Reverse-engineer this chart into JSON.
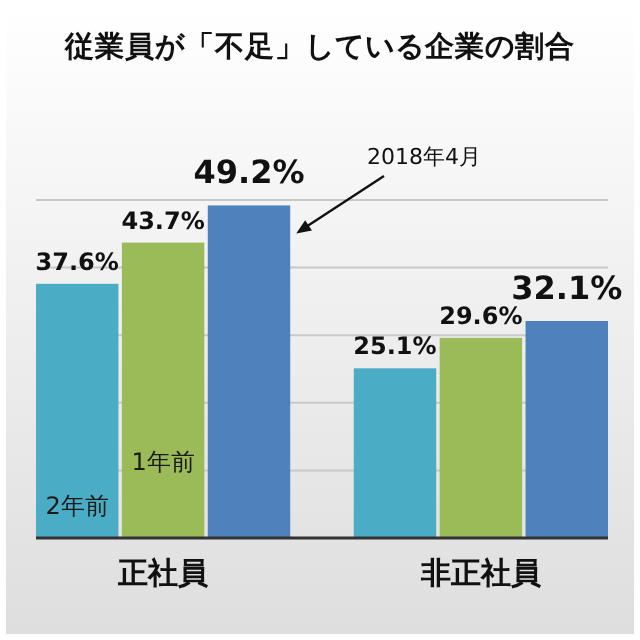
{
  "chart_data": {
    "type": "bar",
    "title": "従業員が「不足」している企業の割合",
    "categories": [
      "正社員",
      "非正社員"
    ],
    "series": [
      {
        "name": "2年前",
        "color": "#4bacc6",
        "values": [
          37.6,
          25.1
        ],
        "value_labels": [
          "37.6%",
          "25.1%"
        ]
      },
      {
        "name": "1年前",
        "color": "#9bbb59",
        "values": [
          43.7,
          29.6
        ],
        "value_labels": [
          "43.7%",
          "29.6%"
        ]
      },
      {
        "name": "2018年4月",
        "color": "#4f81bd",
        "values": [
          49.2,
          32.1
        ],
        "value_labels": [
          "49.2%",
          "32.1%"
        ]
      }
    ],
    "ylim": [
      0,
      50
    ],
    "yticks": [
      {
        "value": 0,
        "label": null
      },
      {
        "value": 10,
        "label": null
      },
      {
        "value": 20,
        "label": null
      },
      {
        "value": 30,
        "label": null
      },
      {
        "value": 40,
        "label": null
      },
      {
        "value": 50,
        "label": null
      }
    ],
    "grid": "y",
    "tick_labels": "x"
  }
}
